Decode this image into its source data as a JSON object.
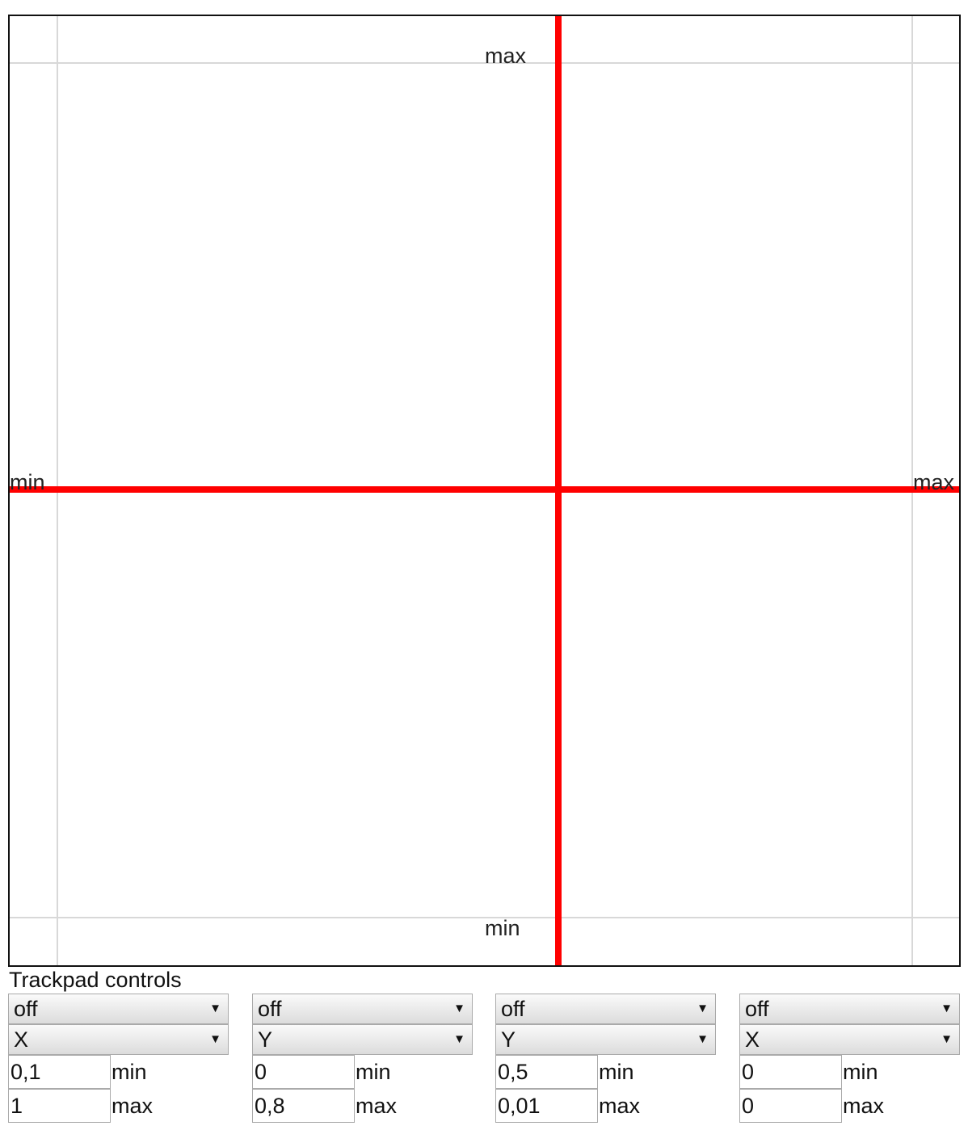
{
  "trackpad": {
    "top_label": "max",
    "bottom_label": "min",
    "left_label": "min",
    "right_label": "max",
    "crosshair_color": "#ff0000",
    "grid_color": "#d8d8d8"
  },
  "controls": {
    "title": "Trackpad controls",
    "groups": [
      {
        "mode": "off",
        "axis": "X",
        "min": "0,1",
        "max": "1",
        "min_label": "min",
        "max_label": "max"
      },
      {
        "mode": "off",
        "axis": "Y",
        "min": "0",
        "max": "0,8",
        "min_label": "min",
        "max_label": "max"
      },
      {
        "mode": "off",
        "axis": "Y",
        "min": "0,5",
        "max": "0,01",
        "min_label": "min",
        "max_label": "max"
      },
      {
        "mode": "off",
        "axis": "X",
        "min": "0",
        "max": "0",
        "min_label": "min",
        "max_label": "max"
      }
    ]
  }
}
